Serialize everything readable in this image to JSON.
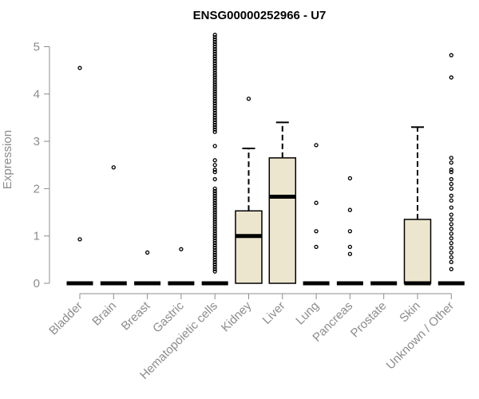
{
  "chart_data": {
    "type": "box",
    "title": "ENSG00000252966 - U7",
    "xlabel": "",
    "ylabel": "Expression",
    "ylim": [
      0,
      5.2
    ],
    "y_ticks": [
      0,
      1,
      2,
      3,
      4,
      5
    ],
    "grid": false,
    "box_fill": "#ede6ce",
    "categories": [
      "Bladder",
      "Brain",
      "Breast",
      "Gastric",
      "Hematopoietic cells",
      "Kidney",
      "Liver",
      "Lung",
      "Pancreas",
      "Prostate",
      "Skin",
      "Unknown / Other"
    ],
    "boxes": [
      {
        "category": "Bladder",
        "q1": 0,
        "median": 0,
        "q3": 0,
        "whisker_low": 0,
        "whisker_high": 0,
        "outliers": [
          0.93,
          4.55
        ]
      },
      {
        "category": "Brain",
        "q1": 0,
        "median": 0,
        "q3": 0,
        "whisker_low": 0,
        "whisker_high": 0,
        "outliers": [
          2.45
        ]
      },
      {
        "category": "Breast",
        "q1": 0,
        "median": 0,
        "q3": 0,
        "whisker_low": 0,
        "whisker_high": 0,
        "outliers": [
          0.65
        ]
      },
      {
        "category": "Gastric",
        "q1": 0,
        "median": 0,
        "q3": 0,
        "whisker_low": 0,
        "whisker_high": 0,
        "outliers": [
          0.72
        ]
      },
      {
        "category": "Hematopoietic cells",
        "q1": 0,
        "median": 0,
        "q3": 0,
        "whisker_low": 0,
        "whisker_high": 0,
        "outliers": [
          0.25,
          0.3,
          0.35,
          0.4,
          0.45,
          0.5,
          0.55,
          0.6,
          0.65,
          0.7,
          0.75,
          0.8,
          0.85,
          0.9,
          0.95,
          1.0,
          1.05,
          1.1,
          1.15,
          1.2,
          1.25,
          1.3,
          1.35,
          1.4,
          1.45,
          1.5,
          1.55,
          1.6,
          1.65,
          1.7,
          1.75,
          1.8,
          1.85,
          1.9,
          1.95,
          2.0,
          2.2,
          2.35,
          2.4,
          2.5,
          2.6,
          2.9,
          3.2,
          3.25,
          3.3,
          3.35,
          3.4,
          3.45,
          3.5,
          3.55,
          3.6,
          3.65,
          3.7,
          3.75,
          3.8,
          3.85,
          3.9,
          3.95,
          4.0,
          4.05,
          4.1,
          4.15,
          4.2,
          4.25,
          4.3,
          4.35,
          4.4,
          4.45,
          4.5,
          4.55,
          4.6,
          4.65,
          4.7,
          4.75,
          4.8,
          4.85,
          4.9,
          4.95,
          5.0,
          5.05,
          5.1,
          5.15,
          5.2,
          5.25
        ]
      },
      {
        "category": "Kidney",
        "q1": 0,
        "median": 1.0,
        "q3": 1.53,
        "whisker_low": 0,
        "whisker_high": 2.85,
        "outliers": [
          3.9
        ]
      },
      {
        "category": "Liver",
        "q1": 0,
        "median": 1.83,
        "q3": 2.65,
        "whisker_low": 0,
        "whisker_high": 3.4,
        "outliers": []
      },
      {
        "category": "Lung",
        "q1": 0,
        "median": 0,
        "q3": 0,
        "whisker_low": 0,
        "whisker_high": 0,
        "outliers": [
          0.77,
          1.1,
          1.7,
          2.92
        ]
      },
      {
        "category": "Pancreas",
        "q1": 0,
        "median": 0,
        "q3": 0,
        "whisker_low": 0,
        "whisker_high": 0,
        "outliers": [
          0.62,
          0.77,
          1.1,
          1.55,
          2.22
        ]
      },
      {
        "category": "Prostate",
        "q1": 0,
        "median": 0,
        "q3": 0,
        "whisker_low": 0,
        "whisker_high": 0,
        "outliers": []
      },
      {
        "category": "Skin",
        "q1": 0,
        "median": 0,
        "q3": 1.35,
        "whisker_low": 0,
        "whisker_high": 3.3,
        "outliers": []
      },
      {
        "category": "Unknown / Other",
        "q1": 0,
        "median": 0,
        "q3": 0,
        "whisker_low": 0,
        "whisker_high": 0,
        "outliers": [
          0.3,
          0.45,
          0.55,
          0.65,
          0.75,
          0.85,
          0.95,
          1.05,
          1.15,
          1.25,
          1.35,
          1.45,
          1.6,
          1.75,
          1.85,
          2.0,
          2.1,
          2.2,
          2.35,
          2.4,
          2.55,
          2.65,
          4.35,
          4.82
        ]
      }
    ]
  }
}
